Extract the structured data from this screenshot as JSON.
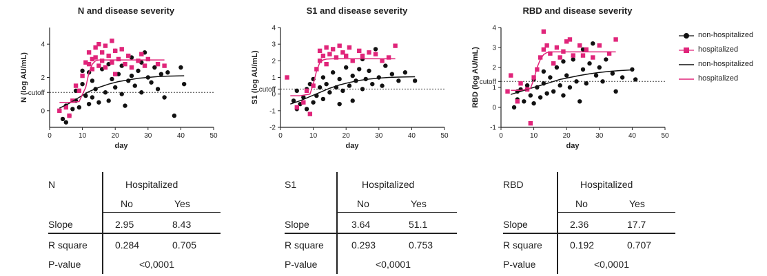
{
  "colors": {
    "non_hospitalized": "#111111",
    "hospitalized": "#e0257a",
    "cutoff_line": "#444444"
  },
  "legend": [
    {
      "label": "non-hospitalized",
      "mark": "dot-line",
      "series": "non_hospitalized"
    },
    {
      "label": "hospitalized",
      "mark": "square-line",
      "series": "hospitalized"
    },
    {
      "label": "non-hospitalized",
      "mark": "line",
      "series": "non_hospitalized"
    },
    {
      "label": "hospitalized",
      "mark": "line",
      "series": "hospitalized"
    }
  ],
  "chart_data": [
    {
      "type": "scatter",
      "title": "N and disease severity",
      "xlabel": "day",
      "ylabel": "N (log AU/mL)",
      "xlim": [
        0,
        50
      ],
      "ylim": [
        -1,
        5
      ],
      "xticks": [
        "0",
        "10",
        "20",
        "30",
        "40",
        "50"
      ],
      "yticks": [
        {
          "value": 0,
          "label": "0"
        },
        {
          "value": 2,
          "label": "2"
        },
        {
          "value": 4,
          "label": "4"
        }
      ],
      "cutoff": {
        "value": 1.1,
        "label": "cutoff"
      },
      "series": [
        {
          "name": "non-hospitalized",
          "marker": "circle",
          "x": [
            4,
            5,
            5,
            6,
            7,
            8,
            8,
            9,
            10,
            10,
            11,
            12,
            12,
            13,
            13,
            14,
            15,
            16,
            17,
            18,
            18,
            19,
            20,
            20,
            21,
            22,
            22,
            23,
            24,
            25,
            25,
            26,
            27,
            28,
            28,
            29,
            30,
            31,
            32,
            33,
            34,
            35,
            36,
            38,
            40,
            41
          ],
          "y": [
            -0.5,
            0.3,
            -0.7,
            -0.3,
            0.1,
            0.6,
            1.2,
            0.2,
            1.6,
            2.4,
            0.9,
            2.3,
            0.4,
            1.8,
            0.8,
            1.3,
            0.5,
            2.5,
            1.1,
            2.8,
            0.6,
            1.9,
            1.4,
            3.6,
            2.2,
            1.0,
            2.7,
            0.3,
            1.8,
            2.1,
            3.2,
            1.5,
            2.4,
            1.1,
            2.9,
            3.5,
            2.0,
            1.7,
            2.6,
            1.3,
            2.2,
            0.8,
            2.3,
            -0.3,
            2.6,
            1.6
          ]
        },
        {
          "name": "hospitalized",
          "marker": "square",
          "x": [
            3,
            5,
            6,
            7,
            8,
            9,
            10,
            11,
            12,
            12,
            13,
            13,
            14,
            14,
            15,
            15,
            16,
            16,
            17,
            17,
            18,
            19,
            19,
            20,
            20,
            21,
            22,
            23,
            24,
            25,
            27,
            28,
            29,
            30,
            33,
            35
          ],
          "y": [
            0.0,
            0.2,
            -0.3,
            0.6,
            1.5,
            1.2,
            2.1,
            2.9,
            2.8,
            3.5,
            3.1,
            2.5,
            3.8,
            3.2,
            4.0,
            2.7,
            3.5,
            3.0,
            2.6,
            3.9,
            3.3,
            2.9,
            4.2,
            3.6,
            2.2,
            3.1,
            3.7,
            2.8,
            3.3,
            2.6,
            3.0,
            3.4,
            2.7,
            3.1,
            2.8,
            2.7
          ]
        }
      ],
      "fits": [
        {
          "name": "non-hospitalized",
          "x": [
            3,
            6,
            9,
            12,
            15,
            18,
            21,
            24,
            27,
            30,
            33,
            36,
            41
          ],
          "y": [
            0.15,
            0.45,
            0.8,
            1.15,
            1.4,
            1.6,
            1.75,
            1.85,
            1.95,
            2.0,
            2.05,
            2.08,
            2.1
          ]
        },
        {
          "name": "hospitalized",
          "x": [
            3,
            6,
            9,
            11,
            12,
            13,
            14,
            15,
            18,
            22,
            26,
            30,
            35
          ],
          "y": [
            0.5,
            0.5,
            0.55,
            1.4,
            2.3,
            2.8,
            3.0,
            3.05,
            3.05,
            3.05,
            3.05,
            3.05,
            3.05
          ]
        }
      ]
    },
    {
      "type": "scatter",
      "title": "S1 and disease severity",
      "xlabel": "day",
      "ylabel": "S1 (log AU/mL)",
      "xlim": [
        0,
        50
      ],
      "ylim": [
        -2,
        4
      ],
      "xticks": [
        "0",
        "10",
        "20",
        "30",
        "40",
        "50"
      ],
      "yticks": [
        {
          "value": -2,
          "label": "-2"
        },
        {
          "value": -1,
          "label": "-1"
        },
        {
          "value": 0,
          "label": "0"
        },
        {
          "value": 1,
          "label": "1"
        },
        {
          "value": 2,
          "label": "2"
        },
        {
          "value": 3,
          "label": "3"
        },
        {
          "value": 4,
          "label": "4"
        }
      ],
      "cutoff": {
        "value": 0.3,
        "label": "cutoff"
      },
      "series": [
        {
          "name": "non-hospitalized",
          "marker": "circle",
          "x": [
            4,
            5,
            5,
            6,
            7,
            8,
            8,
            9,
            10,
            10,
            11,
            12,
            13,
            13,
            14,
            15,
            16,
            17,
            18,
            18,
            19,
            20,
            21,
            22,
            22,
            23,
            24,
            25,
            25,
            26,
            27,
            28,
            29,
            30,
            31,
            32,
            34,
            36,
            38,
            41
          ],
          "y": [
            -0.4,
            -0.9,
            0.2,
            -0.6,
            -0.2,
            0.3,
            -0.9,
            0.6,
            -0.5,
            0.9,
            -0.1,
            0.4,
            1.0,
            -0.3,
            0.6,
            0.1,
            1.3,
            0.4,
            0.9,
            -0.6,
            0.2,
            1.6,
            0.5,
            1.1,
            -0.4,
            0.8,
            1.5,
            0.3,
            2.1,
            0.9,
            1.4,
            0.6,
            2.7,
            1.0,
            0.5,
            1.7,
            1.2,
            0.8,
            1.3,
            0.8
          ]
        },
        {
          "name": "hospitalized",
          "marker": "square",
          "x": [
            2,
            5,
            7,
            8,
            9,
            10,
            11,
            12,
            12,
            13,
            14,
            14,
            15,
            16,
            17,
            18,
            19,
            20,
            21,
            22,
            24,
            25,
            27,
            29,
            31,
            33,
            35
          ],
          "y": [
            1.0,
            -0.8,
            -0.5,
            0.2,
            -1.2,
            0.5,
            1.5,
            2.0,
            2.6,
            2.3,
            2.8,
            1.8,
            2.4,
            2.7,
            2.2,
            2.9,
            2.5,
            2.3,
            2.8,
            2.0,
            2.6,
            2.3,
            2.5,
            2.4,
            2.0,
            2.2,
            2.9
          ]
        }
      ],
      "fits": [
        {
          "name": "non-hospitalized",
          "x": [
            3,
            6,
            9,
            12,
            15,
            18,
            21,
            24,
            27,
            30,
            33,
            36,
            41
          ],
          "y": [
            -0.6,
            -0.4,
            -0.15,
            0.1,
            0.35,
            0.55,
            0.7,
            0.82,
            0.9,
            0.96,
            1.0,
            1.02,
            1.04
          ]
        },
        {
          "name": "hospitalized",
          "x": [
            3,
            6,
            9,
            10,
            11,
            12,
            13,
            14,
            16,
            20,
            25,
            30,
            35
          ],
          "y": [
            -0.1,
            -0.1,
            0.0,
            0.6,
            1.4,
            1.9,
            2.05,
            2.1,
            2.12,
            2.12,
            2.12,
            2.12,
            2.12
          ]
        }
      ]
    },
    {
      "type": "scatter",
      "title": "RBD and disease severity",
      "xlabel": "day",
      "ylabel": "RBD (log AU/mL)",
      "xlim": [
        0,
        50
      ],
      "ylim": [
        -1,
        4
      ],
      "xticks": [
        "0",
        "10",
        "20",
        "30",
        "40",
        "50"
      ],
      "yticks": [
        {
          "value": -1,
          "label": "-1"
        },
        {
          "value": 0,
          "label": "0"
        },
        {
          "value": 1,
          "label": "1"
        },
        {
          "value": 2,
          "label": "2"
        },
        {
          "value": 3,
          "label": "3"
        },
        {
          "value": 4,
          "label": "4"
        }
      ],
      "cutoff": {
        "value": 1.3,
        "label": "cutoff"
      },
      "series": [
        {
          "name": "non-hospitalized",
          "marker": "circle",
          "x": [
            4,
            5,
            5,
            6,
            7,
            8,
            9,
            10,
            10,
            11,
            12,
            13,
            13,
            14,
            15,
            16,
            17,
            18,
            19,
            19,
            20,
            21,
            22,
            23,
            24,
            25,
            25,
            26,
            27,
            28,
            29,
            30,
            31,
            32,
            34,
            35,
            37,
            40,
            41
          ],
          "y": [
            0.0,
            0.8,
            0.4,
            0.9,
            0.3,
            1.1,
            0.6,
            1.4,
            0.2,
            1.0,
            0.5,
            1.8,
            1.2,
            0.7,
            1.5,
            0.8,
            2.0,
            1.1,
            0.6,
            2.3,
            1.6,
            1.0,
            2.4,
            1.3,
            0.3,
            1.9,
            2.9,
            1.2,
            2.2,
            3.2,
            1.6,
            2.0,
            1.3,
            2.4,
            1.7,
            0.8,
            1.5,
            1.9,
            1.4
          ]
        },
        {
          "name": "hospitalized",
          "marker": "square",
          "x": [
            2,
            3,
            5,
            6,
            8,
            9,
            10,
            11,
            12,
            13,
            13,
            14,
            15,
            16,
            17,
            18,
            19,
            20,
            21,
            22,
            24,
            25,
            26,
            28,
            30,
            33,
            35
          ],
          "y": [
            0.8,
            1.6,
            0.3,
            1.2,
            0.9,
            -0.8,
            1.5,
            1.9,
            2.5,
            3.8,
            2.9,
            3.1,
            2.7,
            2.2,
            3.0,
            2.5,
            2.8,
            3.3,
            3.4,
            2.6,
            3.1,
            2.6,
            2.9,
            2.5,
            3.1,
            2.7,
            3.4
          ]
        }
      ],
      "fits": [
        {
          "name": "non-hospitalized",
          "x": [
            3,
            6,
            9,
            12,
            15,
            18,
            21,
            24,
            27,
            30,
            33,
            36,
            40
          ],
          "y": [
            0.65,
            0.8,
            0.95,
            1.1,
            1.25,
            1.4,
            1.5,
            1.6,
            1.68,
            1.75,
            1.8,
            1.84,
            1.88
          ]
        },
        {
          "name": "hospitalized",
          "x": [
            3,
            6,
            9,
            10,
            11,
            12,
            13,
            14,
            16,
            20,
            25,
            30,
            35
          ],
          "y": [
            0.85,
            0.85,
            0.95,
            1.4,
            2.0,
            2.4,
            2.65,
            2.75,
            2.78,
            2.78,
            2.78,
            2.78,
            2.78
          ]
        }
      ]
    }
  ],
  "stats_tables": [
    {
      "antigen": "N",
      "group_header": "Hospitalized",
      "col_no": "No",
      "col_yes": "Yes",
      "slope_label": "Slope",
      "slope_no": "2.95",
      "slope_yes": "8.43",
      "r2_label": "R square",
      "r2_no": "0.284",
      "r2_yes": "0.705",
      "p_label": "P-value",
      "p_value": "<0,0001"
    },
    {
      "antigen": "S1",
      "group_header": "Hospitalized",
      "col_no": "No",
      "col_yes": "Yes",
      "slope_label": "Slope",
      "slope_no": "3.64",
      "slope_yes": "51.1",
      "r2_label": "R square",
      "r2_no": "0.293",
      "r2_yes": "0.753",
      "p_label": "P-value",
      "p_value": "<0,0001"
    },
    {
      "antigen": "RBD",
      "group_header": "Hospitalized",
      "col_no": "No",
      "col_yes": "Yes",
      "slope_label": "Slope",
      "slope_no": "2.36",
      "slope_yes": "17.7",
      "r2_label": "R square",
      "r2_no": "0.192",
      "r2_yes": "0.707",
      "p_label": "P-value",
      "p_value": "<0,0001"
    }
  ]
}
